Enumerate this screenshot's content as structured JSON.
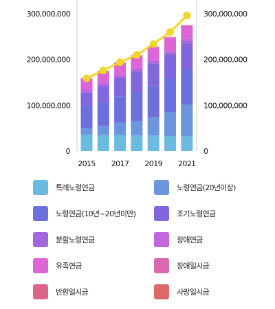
{
  "chart_data": {
    "type": "bar",
    "stacked": true,
    "title": "",
    "xlabel": "",
    "ylabel": "",
    "x": [
      2015,
      2016,
      2017,
      2018,
      2019,
      2020,
      2021
    ],
    "x_tick_labels": [
      "2015",
      "2017",
      "2019",
      "2021"
    ],
    "ylim": [
      0,
      330000000
    ],
    "y_ticks": [
      0,
      100000000,
      200000000,
      300000000
    ],
    "y_tick_labels": [
      "0",
      "100,000,000",
      "200,000,000",
      "300,000,000"
    ],
    "y_axis_both_sides": true,
    "grid": false,
    "legend_position": "bottom",
    "series": [
      {
        "name": "특례노령연금",
        "color": "#6bbbe0",
        "values": [
          36000000,
          35000000,
          35000000,
          34000000,
          34000000,
          33000000,
          33000000
        ]
      },
      {
        "name": "노령연금(20년이상)",
        "color": "#6b95dd",
        "values": [
          15000000,
          20000000,
          27000000,
          32000000,
          40000000,
          52000000,
          68000000
        ]
      },
      {
        "name": "노령연금(10년~20년미만)",
        "color": "#6b70dd",
        "values": [
          47000000,
          52000000,
          57000000,
          63000000,
          69000000,
          74000000,
          79000000
        ]
      },
      {
        "name": "조기노령연금",
        "color": "#8266dd",
        "values": [
          30000000,
          35000000,
          40000000,
          44000000,
          48000000,
          51000000,
          54000000
        ]
      },
      {
        "name": "분할노령연금",
        "color": "#a466dd",
        "values": [
          2000000,
          3000000,
          3000000,
          4000000,
          4000000,
          5000000,
          6000000
        ]
      },
      {
        "name": "장애연금",
        "color": "#c466dd",
        "values": [
          5000000,
          5000000,
          5000000,
          5000000,
          5000000,
          5000000,
          5000000
        ]
      },
      {
        "name": "유족연금",
        "color": "#dc66d6",
        "values": [
          23000000,
          24000000,
          25000000,
          26000000,
          27000000,
          28000000,
          29000000
        ]
      },
      {
        "name": "장애일시금",
        "color": "#dc66b0",
        "values": [
          800000,
          800000,
          800000,
          800000,
          800000,
          800000,
          800000
        ]
      },
      {
        "name": "반환일시금",
        "color": "#dc6688",
        "values": [
          500000,
          500000,
          500000,
          500000,
          500000,
          500000,
          500000
        ]
      },
      {
        "name": "사망일시금",
        "color": "#dc6868",
        "values": [
          200000,
          200000,
          200000,
          200000,
          200000,
          200000,
          200000
        ]
      }
    ],
    "line": {
      "color": "#f2d526",
      "values": [
        159000000,
        176000000,
        194000000,
        210000000,
        234000000,
        260000000,
        296000000
      ]
    }
  }
}
